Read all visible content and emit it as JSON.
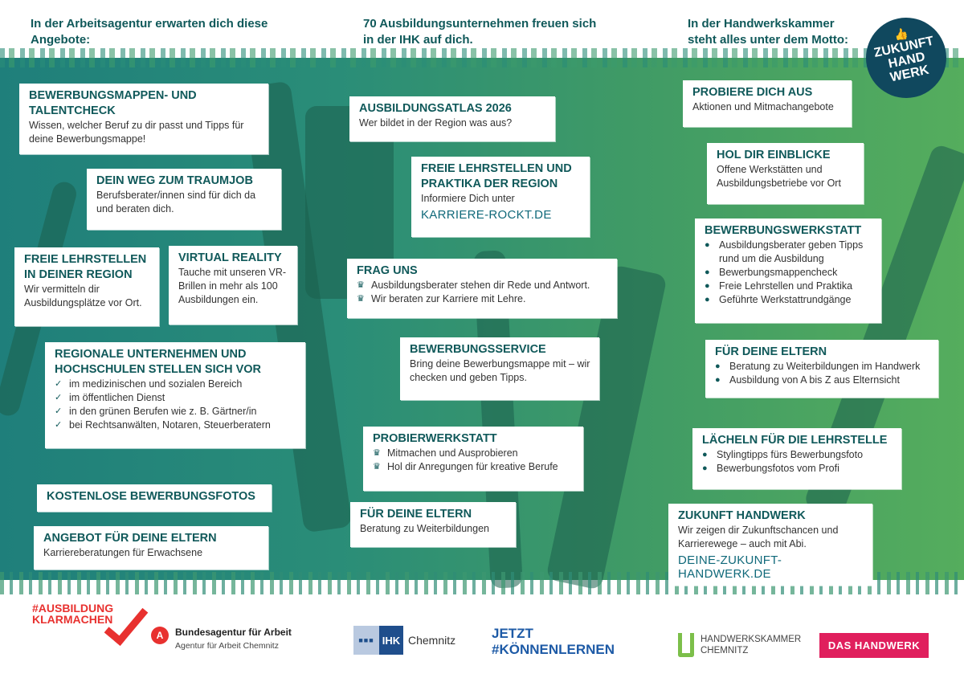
{
  "colors": {
    "heading": "#10595a",
    "background_left": "#1f7f7b",
    "background_right": "#55ad5d"
  },
  "columns": [
    {
      "heading": "In der Arbeitsagentur erwarten dich diese Angebote:"
    },
    {
      "heading": "70 Ausbildungsunternehmen freuen sich in der IHK auf dich."
    },
    {
      "heading": "In der Handwerkskammer steht alles unter dem Motto:"
    }
  ],
  "motto_badge": {
    "icon": "thumbs-up-icon",
    "lines": [
      "ZUKUNFT",
      "HAND",
      "WERK"
    ]
  },
  "boxes": [
    {
      "title": "BEWERBUNGSMAPPEN- UND TALENTCHECK",
      "text": "Wissen, welcher Beruf zu dir passt und Tipps für deine Bewerbungsmappe!"
    },
    {
      "title": "DEIN WEG ZUM TRAUMJOB",
      "text": "Berufsberater/innen sind für dich da und beraten dich."
    },
    {
      "title": "FREIE LEHRSTELLEN IN DEINER REGION",
      "text": "Wir vermitteln dir Ausbildungsplätze vor Ort."
    },
    {
      "title": "VIRTUAL REALITY",
      "text": "Tauche mit unseren VR-Brillen in mehr als 100 Ausbildungen ein."
    },
    {
      "title": "REGIONALE UNTERNEHMEN UND HOCHSCHULEN STELLEN SICH VOR",
      "bullet_icon": "check",
      "items": [
        "im medizinischen und sozialen Bereich",
        "im öffentlichen Dienst",
        "in den grünen Berufen wie z. B. Gärtner/in",
        "bei Rechtsanwälten, Notaren, Steuerberatern"
      ]
    },
    {
      "title": "KOSTENLOSE BEWERBUNGSFOTOS"
    },
    {
      "title": "ANGEBOT FÜR DEINE ELTERN",
      "text": "Karriereberatungen für Erwachsene"
    },
    {
      "title": "AUSBILDUNGSATLAS 2026",
      "text": "Wer bildet in der Region was aus?"
    },
    {
      "title": "FREIE LEHRSTELLEN UND PRAKTIKA DER REGION",
      "text": "Informiere Dich unter",
      "link": "KARRIERE-ROCKT.DE"
    },
    {
      "title": "FRAG UNS",
      "bullet_icon": "crown",
      "items": [
        "Ausbildungsberater stehen dir Rede und Antwort.",
        "Wir beraten zur Karriere mit Lehre."
      ]
    },
    {
      "title": "BEWERBUNGSSERVICE",
      "text": "Bring deine Bewerbungsmappe mit – wir checken und geben Tipps."
    },
    {
      "title": "PROBIERWERKSTATT",
      "bullet_icon": "crown",
      "items": [
        "Mitmachen und Ausprobieren",
        "Hol dir Anregungen für kreative Berufe"
      ]
    },
    {
      "title": "FÜR DEINE ELTERN",
      "text": "Beratung zu Weiterbildungen"
    },
    {
      "title": "PROBIERE DICH AUS",
      "text": "Aktionen und Mitmachangebote"
    },
    {
      "title": "HOL DIR EINBLICKE",
      "text": "Offene Werkstätten und Ausbildungsbetriebe vor Ort"
    },
    {
      "title": "BEWERBUNGSWERKSTATT",
      "bullet_icon": "dot",
      "items": [
        "Ausbildungsberater geben Tipps rund um die Ausbildung",
        "Bewerbungsmappencheck",
        "Freie Lehrstellen und Praktika",
        "Geführte Werkstattrundgänge"
      ]
    },
    {
      "title": "FÜR DEINE ELTERN",
      "bullet_icon": "dot",
      "items": [
        "Beratung zu Weiterbildungen im Handwerk",
        "Ausbildung von A bis Z aus Elternsicht"
      ]
    },
    {
      "title": "LÄCHELN FÜR DIE LEHRSTELLE",
      "bullet_icon": "dot",
      "items": [
        "Stylingtipps fürs Bewerbungsfoto",
        "Bewerbungsfotos vom Profi"
      ]
    },
    {
      "title": "ZUKUNFT HANDWERK",
      "text": "Wir zeigen dir Zukunftschancen und Karrierewege – auch mit Abi.",
      "link": "DEINE-ZUKUNFT-HANDWERK.DE"
    }
  ],
  "footer": {
    "ausbildung_klarmachen": [
      "#AUSBILDUNG",
      "KLARMACHEN"
    ],
    "ba": {
      "name": "Bundesagentur für Arbeit",
      "sub": "Agentur für Arbeit Chemnitz"
    },
    "ihk": {
      "mark": "IHK",
      "city": "Chemnitz"
    },
    "koennenlernen": [
      "JETZT",
      "#KÖNNENLERNEN"
    ],
    "hwk": [
      "HANDWERKSKAMMER",
      "CHEMNITZ"
    ],
    "das_handwerk": "DAS HANDWERK"
  }
}
